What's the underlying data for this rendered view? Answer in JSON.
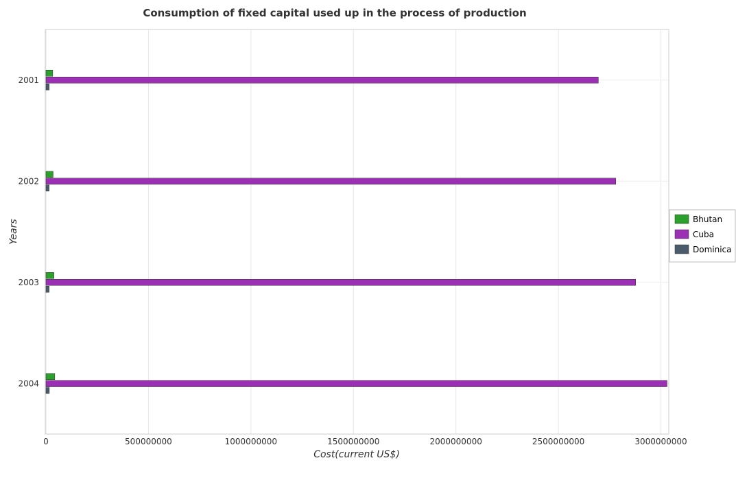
{
  "chart_data": {
    "type": "bar",
    "orientation": "horizontal",
    "title": "Consumption of fixed capital used up in the process of production",
    "xlabel": "Cost(current US$)",
    "ylabel": "Years",
    "categories": [
      "2001",
      "2002",
      "2003",
      "2004"
    ],
    "xlim": [
      0,
      3200000000
    ],
    "x_ticks": [
      0,
      500000000,
      1000000000,
      1500000000,
      2000000000,
      2500000000,
      3000000000
    ],
    "x_tick_labels": [
      "0",
      "500000000",
      "1000000000",
      "1500000000",
      "2000000000",
      "2500000000",
      "3000000000"
    ],
    "grid": true,
    "legend_position": "right",
    "series": [
      {
        "name": "Bhutan",
        "color": "#2ca02c",
        "values": [
          33000000,
          35000000,
          39000000,
          43000000
        ]
      },
      {
        "name": "Cuba",
        "color": "#9b30b5",
        "values": [
          2695000000,
          2780000000,
          2877000000,
          3030000000
        ]
      },
      {
        "name": "Dominica",
        "color": "#4a5b6b",
        "values": [
          16000000,
          15500000,
          15500000,
          16500000
        ]
      }
    ]
  }
}
